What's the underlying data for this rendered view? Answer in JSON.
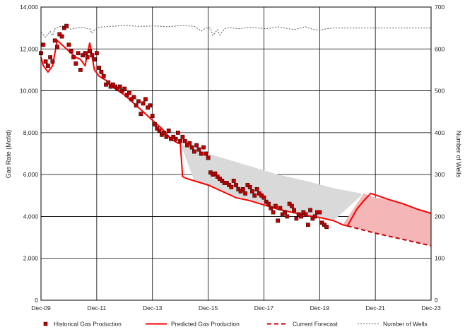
{
  "chart_data": {
    "type": "line",
    "title": "",
    "xlabel": "",
    "ylabel": "Gas Rate (Mcf/d)",
    "y2label": "Number of Wells",
    "x_range": [
      "2009-12",
      "2023-12"
    ],
    "ylim": [
      0,
      14000
    ],
    "y2lim": [
      0,
      700
    ],
    "grid": true,
    "legend_position": "bottom",
    "x_tick_labels": [
      "Dec-09",
      "Dec-11",
      "Dec-13",
      "Dec-15",
      "Dec-17",
      "Dec-19",
      "Dec-21",
      "Dec-23"
    ],
    "y_tick_labels": [
      "0",
      "2,000",
      "4,000",
      "6,000",
      "8,000",
      "10,000",
      "12,000",
      "14,000"
    ],
    "y2_tick_labels": [
      "0",
      "100",
      "200",
      "300",
      "400",
      "500",
      "600",
      "700"
    ],
    "series": [
      {
        "name": "Historical Gas Production",
        "style": "markers",
        "color": "#c00000",
        "x": [
          "2009-12",
          "2010-01",
          "2010-02",
          "2010-03",
          "2010-04",
          "2010-05",
          "2010-06",
          "2010-07",
          "2010-08",
          "2010-09",
          "2010-10",
          "2010-11",
          "2010-12",
          "2011-01",
          "2011-02",
          "2011-03",
          "2011-04",
          "2011-05",
          "2011-06",
          "2011-07",
          "2011-08",
          "2011-09",
          "2011-10",
          "2011-11",
          "2011-12",
          "2012-01",
          "2012-02",
          "2012-03",
          "2012-04",
          "2012-05",
          "2012-06",
          "2012-07",
          "2012-08",
          "2012-09",
          "2012-10",
          "2012-11",
          "2012-12",
          "2013-01",
          "2013-02",
          "2013-03",
          "2013-04",
          "2013-05",
          "2013-06",
          "2013-07",
          "2013-08",
          "2013-09",
          "2013-10",
          "2013-11",
          "2013-12",
          "2014-01",
          "2014-02",
          "2014-03",
          "2014-04",
          "2014-05",
          "2014-06",
          "2014-07",
          "2014-08",
          "2014-09",
          "2014-10",
          "2014-11",
          "2014-12",
          "2015-01",
          "2015-02",
          "2015-03",
          "2015-04",
          "2015-05",
          "2015-06",
          "2015-07",
          "2015-08",
          "2015-09",
          "2015-10",
          "2015-11",
          "2015-12",
          "2016-01",
          "2016-02",
          "2016-03",
          "2016-04",
          "2016-05",
          "2016-06",
          "2016-07",
          "2016-08",
          "2016-09",
          "2016-10",
          "2016-11",
          "2016-12",
          "2017-01",
          "2017-02",
          "2017-03",
          "2017-04",
          "2017-05",
          "2017-06",
          "2017-07",
          "2017-08",
          "2017-09",
          "2017-10",
          "2017-11",
          "2017-12",
          "2018-01",
          "2018-02",
          "2018-03",
          "2018-04",
          "2018-05",
          "2018-06",
          "2018-07",
          "2018-08",
          "2018-09",
          "2018-10",
          "2018-11",
          "2018-12",
          "2019-01",
          "2019-02",
          "2019-03",
          "2019-04",
          "2019-05",
          "2019-06",
          "2019-07",
          "2019-08",
          "2019-09",
          "2019-10",
          "2019-11",
          "2019-12",
          "2020-01",
          "2020-02",
          "2020-03"
        ],
        "y": [
          11800,
          12200,
          11400,
          11200,
          11600,
          11400,
          12400,
          12100,
          12700,
          12600,
          13000,
          13100,
          12200,
          11900,
          11600,
          11300,
          11800,
          11000,
          11700,
          11800,
          11600,
          11900,
          11700,
          11500,
          11800,
          11100,
          10900,
          10700,
          10300,
          10400,
          10200,
          10300,
          10200,
          10100,
          10200,
          10000,
          10100,
          9800,
          9900,
          9600,
          9700,
          9300,
          9500,
          8900,
          9400,
          9600,
          9200,
          9300,
          8800,
          8400,
          8200,
          8100,
          7900,
          8000,
          7800,
          8100,
          7700,
          7800,
          7700,
          8000,
          7600,
          7800,
          7600,
          7400,
          7500,
          7300,
          7100,
          7400,
          7200,
          7000,
          7300,
          7000,
          6800,
          6100,
          6000,
          6050,
          5900,
          5800,
          5700,
          5600,
          5600,
          5500,
          5400,
          5700,
          5500,
          5300,
          5200,
          5300,
          5100,
          5500,
          5400,
          5200,
          5000,
          5300,
          5100,
          5000,
          4900,
          4700,
          4600,
          4400,
          4200,
          4500,
          3800,
          4400,
          4100,
          4200,
          4000,
          4600,
          4500,
          4300,
          3900,
          4100,
          4000,
          4200,
          4100,
          3600,
          4300,
          3900,
          4000,
          4200,
          4200,
          3700,
          3600,
          3500
        ]
      },
      {
        "name": "Predicted Gas Production",
        "style": "solid",
        "color": "#ff0000",
        "x": [
          "2009-12",
          "2010-01",
          "2010-03",
          "2010-05",
          "2010-07",
          "2010-08",
          "2010-10",
          "2010-12",
          "2011-01",
          "2011-03",
          "2011-05",
          "2011-07",
          "2011-09",
          "2011-11",
          "2012-01",
          "2012-04",
          "2012-08",
          "2012-12",
          "2013-04",
          "2013-08",
          "2013-12",
          "2014-04",
          "2014-08",
          "2014-11",
          "2014-12",
          "2015-01",
          "2015-03",
          "2015-06",
          "2015-12",
          "2016-06",
          "2016-12",
          "2017-06",
          "2017-12",
          "2018-06",
          "2018-12",
          "2019-06",
          "2019-12",
          "2020-06",
          "2020-10",
          "2020-12",
          "2021-04",
          "2021-07",
          "2021-10",
          "2022-06",
          "2022-12",
          "2023-06",
          "2023-12"
        ],
        "y": [
          11600,
          11200,
          10900,
          11200,
          12400,
          12300,
          12100,
          11900,
          11800,
          11600,
          11500,
          11200,
          12300,
          11000,
          10700,
          10500,
          10100,
          9800,
          9400,
          9000,
          8600,
          8200,
          7700,
          7500,
          7500,
          5900,
          5800,
          5700,
          5500,
          5200,
          4900,
          4750,
          4550,
          4350,
          4200,
          4050,
          3950,
          3800,
          3600,
          3550,
          4350,
          4750,
          5100,
          4800,
          4600,
          4350,
          4150
        ]
      },
      {
        "name": "Current Forecast",
        "style": "dashed",
        "color": "#c00000",
        "x": [
          "2020-12",
          "2021-12",
          "2022-12",
          "2023-12"
        ],
        "y": [
          3550,
          3200,
          2900,
          2600
        ]
      },
      {
        "name": "Number of Wells",
        "style": "dotted",
        "color": "#555555",
        "axis": "right",
        "x": [
          "2009-12",
          "2010-02",
          "2010-04",
          "2010-05",
          "2010-06",
          "2010-09",
          "2011-01",
          "2011-05",
          "2011-09",
          "2011-10",
          "2011-11",
          "2012-01",
          "2012-06",
          "2013-01",
          "2013-06",
          "2014-01",
          "2014-06",
          "2015-01",
          "2015-06",
          "2015-09",
          "2015-11",
          "2016-01",
          "2016-02",
          "2016-04",
          "2016-05",
          "2016-07",
          "2016-09",
          "2017-01",
          "2017-06",
          "2018-01",
          "2018-06",
          "2019-01",
          "2019-06",
          "2019-09",
          "2019-12",
          "2020-03",
          "2020-06",
          "2021-01",
          "2022-01",
          "2023-01",
          "2023-12"
        ],
        "y": [
          640,
          628,
          642,
          632,
          648,
          655,
          647,
          652,
          648,
          637,
          645,
          652,
          654,
          656,
          654,
          655,
          653,
          656,
          654,
          643,
          650,
          650,
          632,
          646,
          633,
          648,
          651,
          648,
          652,
          648,
          653,
          646,
          653,
          647,
          645,
          648,
          650,
          650,
          650,
          650,
          650
        ]
      }
    ],
    "shaded_areas": [
      {
        "color": "#d9d9d9",
        "x": [
          "2014-12",
          "2015-06",
          "2016-06",
          "2017-06",
          "2018-06",
          "2019-06",
          "2020-06",
          "2021-06"
        ],
        "upper": [
          7500,
          7200,
          6800,
          6400,
          6000,
          5700,
          5350,
          5100
        ],
        "lower": [
          7500,
          5700,
          5200,
          4750,
          4350,
          4050,
          3800,
          5000
        ]
      },
      {
        "color": "#f4b6b6",
        "x": [
          "2020-10",
          "2021-07",
          "2021-12",
          "2022-06",
          "2022-12",
          "2023-06",
          "2023-12"
        ],
        "upper": [
          3600,
          5100,
          4900,
          4800,
          4600,
          4350,
          4150
        ],
        "lower": [
          3600,
          3350,
          3200,
          3050,
          2900,
          2750,
          2600
        ]
      }
    ]
  }
}
